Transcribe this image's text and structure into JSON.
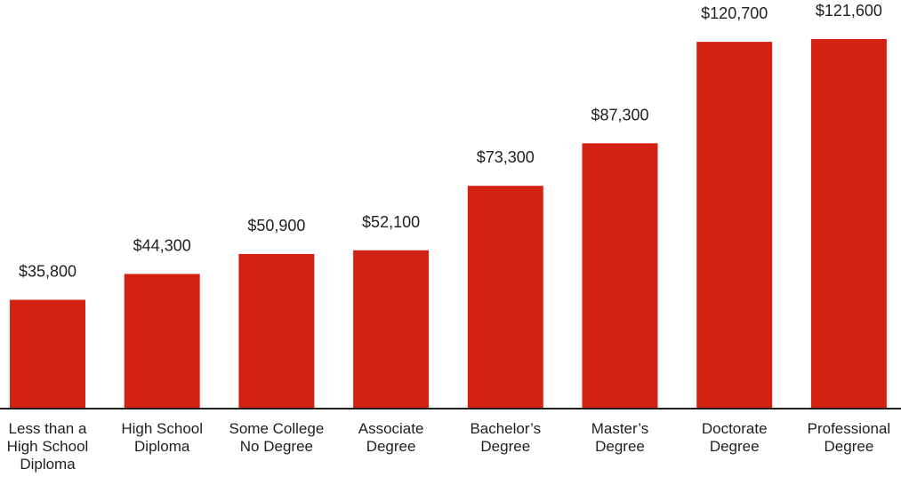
{
  "chart_data": {
    "type": "bar",
    "categories": [
      [
        "Less than a",
        "High School",
        "Diploma"
      ],
      [
        "High School",
        "Diploma"
      ],
      [
        "Some College",
        "No Degree"
      ],
      [
        "Associate",
        "Degree"
      ],
      [
        "Bachelor’s",
        "Degree"
      ],
      [
        "Master’s",
        "Degree"
      ],
      [
        "Doctorate",
        "Degree"
      ],
      [
        "Professional",
        "Degree"
      ]
    ],
    "values": [
      35800,
      44300,
      50900,
      52100,
      73300,
      87300,
      120700,
      121600
    ],
    "value_labels": [
      "$35,800",
      "$44,300",
      "$50,900",
      "$52,100",
      "$73,300",
      "$87,300",
      "$120,700",
      "$121,600"
    ],
    "title": "",
    "xlabel": "",
    "ylabel": "",
    "ylim": [
      0,
      121600
    ],
    "grid": false,
    "legend": "none",
    "colors": {
      "bar": "#d42212",
      "axis": "#1f1f1f",
      "text": "#1f1f1f"
    }
  }
}
